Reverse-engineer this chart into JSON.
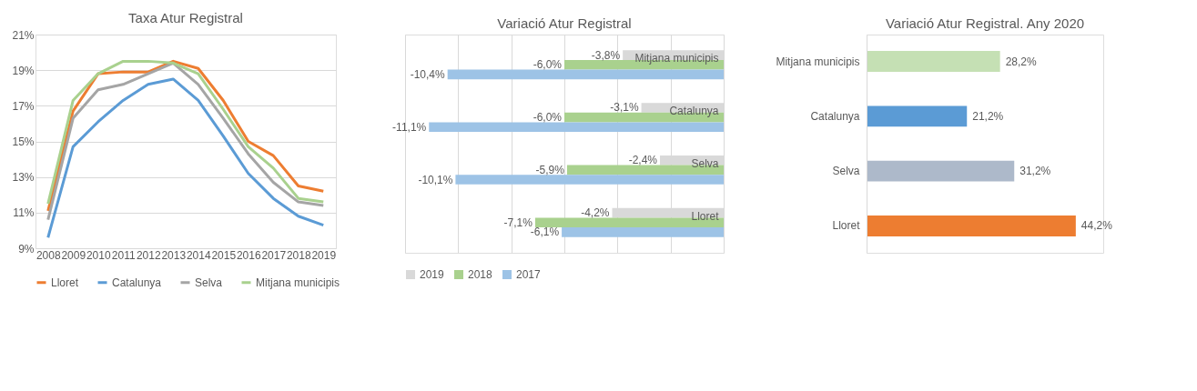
{
  "chart_data": [
    {
      "type": "line",
      "title": "Taxa Atur Registral",
      "categories": [
        "2008",
        "2009",
        "2010",
        "2011",
        "2012",
        "2013",
        "2014",
        "2015",
        "2016",
        "2017",
        "2018",
        "2019"
      ],
      "series": [
        {
          "name": "Lloret",
          "color": "#ed7d31",
          "values": [
            11.1,
            16.7,
            18.8,
            18.9,
            18.9,
            19.5,
            19.1,
            17.3,
            15.0,
            14.2,
            12.5,
            12.2
          ]
        },
        {
          "name": "Catalunya",
          "color": "#5b9bd5",
          "values": [
            9.6,
            14.7,
            16.1,
            17.3,
            18.2,
            18.5,
            17.3,
            15.3,
            13.2,
            11.8,
            10.8,
            10.3
          ]
        },
        {
          "name": "Selva",
          "color": "#a5a5a5",
          "values": [
            10.6,
            16.3,
            17.9,
            18.2,
            18.8,
            19.4,
            18.2,
            16.3,
            14.3,
            12.7,
            11.6,
            11.4
          ]
        },
        {
          "name": "Mitjana municipis",
          "color": "#a9d18e",
          "values": [
            11.5,
            17.3,
            18.8,
            19.5,
            19.5,
            19.4,
            18.8,
            16.8,
            14.7,
            13.5,
            11.8,
            11.6
          ]
        }
      ],
      "ylim": [
        9,
        21
      ],
      "yticks": [
        {
          "value": 9,
          "label": "9%"
        },
        {
          "value": 11,
          "label": "11%"
        },
        {
          "value": 13,
          "label": "13%"
        },
        {
          "value": 15,
          "label": "15%"
        },
        {
          "value": 17,
          "label": "17%"
        },
        {
          "value": 19,
          "label": "19%"
        },
        {
          "value": 21,
          "label": "21%"
        }
      ],
      "grid": "y",
      "legend": "bottom",
      "marker": "none",
      "line_style": "solid"
    },
    {
      "type": "bar",
      "title": "Variació Atur Registral",
      "orientation": "horizontal",
      "categories": [
        "Mitjana municipis",
        "Catalunya",
        "Selva",
        "Lloret"
      ],
      "series": [
        {
          "name": "2019",
          "color": "#d9d9d9",
          "values": [
            -3.8,
            -3.1,
            -2.4,
            -4.2
          ],
          "value_labels": [
            "-3,8%",
            "-3,1%",
            "-2,4%",
            "-4,2%"
          ]
        },
        {
          "name": "2018",
          "color": "#a9d18e",
          "values": [
            -6.0,
            -6.0,
            -5.9,
            -7.1
          ],
          "value_labels": [
            "-6,0%",
            "-6,0%",
            "-5,9%",
            "-7,1%"
          ]
        },
        {
          "name": "2017",
          "color": "#9dc3e6",
          "values": [
            -10.4,
            -11.1,
            -10.1,
            -6.1
          ],
          "value_labels": [
            "-10,4%",
            "-11,1%",
            "-10,1%",
            "-6,1%"
          ]
        }
      ],
      "xlim": [
        -12,
        0
      ],
      "xticks": [
        {
          "value": -12,
          "label": null
        },
        {
          "value": -10,
          "label": null
        },
        {
          "value": -8,
          "label": null
        },
        {
          "value": -6,
          "label": null
        },
        {
          "value": -4,
          "label": null
        },
        {
          "value": -2,
          "label": null
        },
        {
          "value": 0,
          "label": null
        }
      ],
      "tick_labels": "y",
      "grid": "x",
      "legend": "bottom"
    },
    {
      "type": "bar",
      "title": "Variació Atur Registral. Any 2020",
      "orientation": "horizontal",
      "categories": [
        "Mitjana municipis",
        "Catalunya",
        "Selva",
        "Lloret"
      ],
      "values": [
        28.2,
        21.2,
        31.2,
        44.2
      ],
      "colors": [
        "#c5e0b4",
        "#5b9bd5",
        "#adb9ca",
        "#ed7d31"
      ],
      "value_labels": [
        "28,2%",
        "21,2%",
        "31,2%",
        "44,2%"
      ],
      "xlim": [
        0,
        50
      ],
      "tick_labels": "y"
    }
  ]
}
